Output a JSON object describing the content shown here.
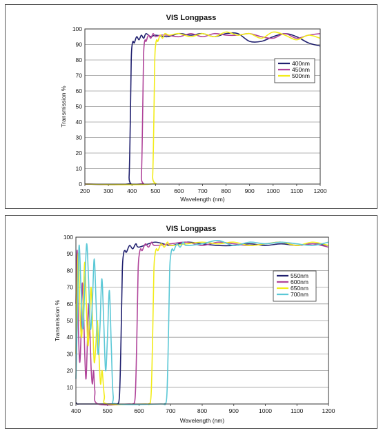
{
  "chart_data": [
    {
      "type": "line",
      "title": "VIS Longpass",
      "xlabel": "Wavelength (nm)",
      "ylabel": "Transmission %",
      "xlim": [
        200,
        1200
      ],
      "ylim": [
        0,
        100
      ],
      "xticks": [
        200,
        300,
        400,
        500,
        600,
        700,
        800,
        900,
        1000,
        1100,
        1200
      ],
      "yticks": [
        0,
        10,
        20,
        30,
        40,
        50,
        60,
        70,
        80,
        90,
        100
      ],
      "grid": true,
      "legend_position": "right",
      "series": [
        {
          "name": "400nm",
          "color": "#1f1f6e",
          "x": [
            200,
            380,
            388,
            393,
            397,
            401,
            405,
            410,
            420,
            430,
            440,
            450,
            460,
            480,
            500,
            550,
            600,
            650,
            700,
            750,
            800,
            850,
            900,
            950,
            1000,
            1050,
            1100,
            1150,
            1200
          ],
          "y": [
            0,
            0,
            5,
            40,
            80,
            90,
            92,
            91,
            95,
            93,
            96,
            94,
            97,
            95,
            96,
            95,
            97,
            96,
            97,
            95,
            97,
            97,
            92,
            92,
            95,
            97,
            95,
            91,
            89
          ]
        },
        {
          "name": "450nm",
          "color": "#b0449a",
          "x": [
            200,
            430,
            440,
            445,
            449,
            452,
            456,
            460,
            470,
            480,
            490,
            500,
            520,
            550,
            600,
            650,
            700,
            750,
            800,
            850,
            900,
            950,
            1000,
            1050,
            1100,
            1150,
            1200
          ],
          "y": [
            0,
            0,
            5,
            40,
            80,
            90,
            93,
            92,
            96,
            94,
            97,
            95,
            96,
            96,
            95,
            97,
            95,
            97,
            96,
            96,
            97,
            95,
            94,
            97,
            94,
            96,
            97
          ]
        },
        {
          "name": "500nm",
          "color": "#f2ec1a",
          "x": [
            200,
            480,
            488,
            493,
            497,
            501,
            505,
            510,
            520,
            530,
            540,
            560,
            600,
            650,
            700,
            750,
            800,
            850,
            900,
            950,
            1000,
            1050,
            1100,
            1150,
            1200
          ],
          "y": [
            0,
            0,
            5,
            40,
            80,
            90,
            93,
            92,
            96,
            94,
            97,
            96,
            97,
            95,
            97,
            95,
            98,
            96,
            97,
            94,
            98,
            96,
            93,
            96,
            94
          ]
        }
      ]
    },
    {
      "type": "line",
      "title": "VIS Longpass",
      "xlabel": "Wavelength (nm)",
      "ylabel": "Transmission %",
      "xlim": [
        400,
        1200
      ],
      "ylim": [
        0,
        100
      ],
      "xticks": [
        400,
        500,
        600,
        700,
        800,
        900,
        1000,
        1100,
        1200
      ],
      "yticks": [
        0,
        10,
        20,
        30,
        40,
        50,
        60,
        70,
        80,
        90,
        100
      ],
      "grid": true,
      "legend_position": "right",
      "series": [
        {
          "name": "550nm",
          "color": "#1f1f6e",
          "x": [
            400,
            404,
            410,
            420,
            520,
            530,
            538,
            543,
            547,
            551,
            555,
            560,
            570,
            580,
            590,
            600,
            650,
            700,
            750,
            800,
            850,
            900,
            950,
            1000,
            1050,
            1100,
            1150,
            1200
          ],
          "y": [
            1,
            0,
            0,
            0,
            0,
            0,
            5,
            40,
            80,
            90,
            92,
            91,
            95,
            93,
            96,
            94,
            97,
            95,
            97,
            96,
            95,
            95,
            96,
            95,
            96,
            95,
            96,
            95
          ]
        },
        {
          "name": "600nm",
          "color": "#b0449a",
          "x": [
            400,
            404,
            408,
            412,
            416,
            420,
            424,
            428,
            432,
            436,
            440,
            444,
            448,
            452,
            456,
            460,
            470,
            570,
            580,
            588,
            593,
            597,
            601,
            605,
            610,
            620,
            630,
            640,
            650,
            700,
            750,
            800,
            850,
            900,
            950,
            1000,
            1050,
            1100,
            1150,
            1200
          ],
          "y": [
            60,
            92,
            45,
            25,
            40,
            72,
            58,
            30,
            15,
            35,
            60,
            45,
            22,
            12,
            20,
            8,
            0,
            0,
            0,
            5,
            40,
            80,
            90,
            93,
            92,
            96,
            94,
            97,
            95,
            96,
            97,
            95,
            97,
            96,
            95,
            96,
            97,
            95,
            96,
            94
          ]
        },
        {
          "name": "650nm",
          "color": "#f2ec1a",
          "x": [
            400,
            404,
            408,
            413,
            418,
            423,
            428,
            433,
            438,
            443,
            448,
            453,
            458,
            463,
            468,
            473,
            478,
            483,
            490,
            500,
            620,
            630,
            638,
            643,
            647,
            651,
            655,
            660,
            670,
            680,
            690,
            700,
            750,
            800,
            850,
            900,
            950,
            1000,
            1050,
            1100,
            1150,
            1200
          ],
          "y": [
            30,
            70,
            90,
            55,
            40,
            60,
            85,
            60,
            35,
            50,
            70,
            48,
            25,
            35,
            50,
            30,
            12,
            20,
            5,
            0,
            0,
            0,
            5,
            40,
            80,
            90,
            93,
            92,
            96,
            94,
            97,
            95,
            96,
            97,
            96,
            97,
            95,
            96,
            97,
            95,
            97,
            95
          ]
        },
        {
          "name": "700nm",
          "color": "#5bc8d6",
          "x": [
            400,
            405,
            410,
            416,
            422,
            428,
            434,
            440,
            446,
            452,
            458,
            464,
            470,
            476,
            482,
            488,
            494,
            500,
            506,
            512,
            518,
            530,
            670,
            680,
            688,
            693,
            697,
            701,
            705,
            710,
            720,
            730,
            740,
            750,
            800,
            850,
            900,
            950,
            1000,
            1050,
            1100,
            1150,
            1200
          ],
          "y": [
            15,
            55,
            95,
            70,
            45,
            70,
            96,
            75,
            45,
            60,
            87,
            60,
            30,
            45,
            75,
            50,
            20,
            40,
            68,
            35,
            5,
            0,
            0,
            0,
            5,
            40,
            80,
            90,
            93,
            92,
            96,
            94,
            97,
            95,
            96,
            98,
            95,
            97,
            96,
            97,
            96,
            95,
            97
          ]
        }
      ]
    }
  ]
}
